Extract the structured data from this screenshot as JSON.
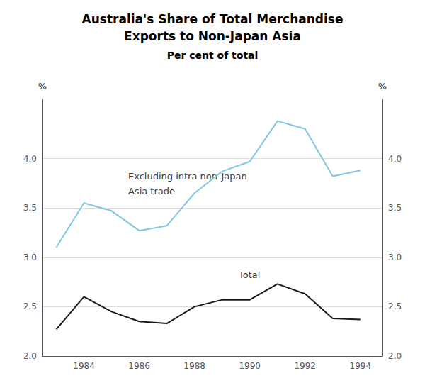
{
  "chart_data": {
    "type": "line",
    "title": "Australia's Share of Total Merchandise\nExports to Non-Japan Asia",
    "subtitle": "Per cent of total",
    "y_label": "%",
    "y2_label": "%",
    "x": [
      1983,
      1984,
      1985,
      1986,
      1987,
      1988,
      1989,
      1990,
      1991,
      1992,
      1993,
      1994
    ],
    "series": [
      {
        "color": "#7fc8e0",
        "values": [
          3.1,
          3.55,
          3.47,
          3.27,
          3.32,
          3.65,
          3.87,
          3.97,
          4.38,
          4.3,
          3.82,
          3.88
        ]
      },
      {
        "color": "#1a1a1a",
        "values": [
          2.27,
          2.6,
          2.45,
          2.35,
          2.33,
          2.5,
          2.57,
          2.57,
          2.73,
          2.63,
          2.38,
          2.37
        ]
      }
    ],
    "xlim": [
      1982.5,
      1994.8
    ],
    "xticks": [
      1984,
      1986,
      1988,
      1990,
      1992,
      1994
    ],
    "ylim": [
      2.0,
      4.6
    ],
    "yticks": [
      {
        "value": 2.0,
        "label": "2.0"
      },
      2.5,
      {
        "value": 3.0,
        "label": "3.0"
      },
      3.5,
      {
        "value": 4.0,
        "label": "4.0"
      }
    ],
    "y2lim": [
      2.0,
      4.6
    ],
    "y2ticks": [
      {
        "value": 2.0,
        "label": "2.0"
      },
      2.5,
      {
        "value": 3.0,
        "label": "3.0"
      },
      3.5,
      {
        "value": 4.0,
        "label": "4.0"
      }
    ],
    "annotations": [
      {
        "text": "Excluding intra non-Japan",
        "x": 1985.6,
        "y": 3.82
      },
      {
        "text": "Asia trade",
        "x": 1985.6,
        "y": 3.67
      },
      {
        "text": "Total",
        "x": 1989.6,
        "y": 2.82
      }
    ],
    "grid": true
  }
}
